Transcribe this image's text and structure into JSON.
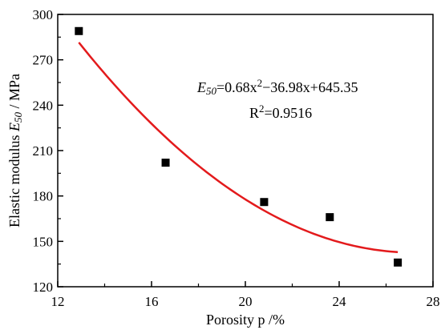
{
  "chart_data": {
    "type": "scatter",
    "xlabel": "Porosity p /%",
    "ylabel_prefix": "Elastic modulus ",
    "ylabel_symbol": "E",
    "ylabel_subscript": "50",
    "ylabel_suffix": " / MPa",
    "xlim": [
      12,
      28
    ],
    "ylim": [
      120,
      300
    ],
    "x_ticks": [
      12,
      16,
      20,
      24,
      28
    ],
    "y_ticks": [
      120,
      150,
      180,
      210,
      240,
      270,
      300
    ],
    "y_tick_labels": [
      "120",
      "150",
      "180",
      "210",
      "240",
      "270",
      "300"
    ],
    "grid": false,
    "series": [
      {
        "type": "scatter",
        "marker": "square",
        "color": "#000000",
        "x": [
          12.9,
          16.6,
          20.8,
          23.6,
          26.5
        ],
        "y": [
          289,
          202,
          176,
          166,
          136
        ]
      }
    ],
    "fit": {
      "type": "quadratic",
      "coefficients": [
        0.68,
        -36.98,
        645.35
      ],
      "x_range": [
        12.9,
        26.5
      ],
      "color": "#e31a1c"
    },
    "annotation": {
      "equation_lhs_symbol": "E",
      "equation_lhs_subscript": "50",
      "equation_part1": "=0.68x",
      "equation_power": "2",
      "equation_part2": "−36.98x+645.35",
      "r2_prefix": "R",
      "r2_power": "2",
      "r2_value": "=0.9516"
    }
  }
}
